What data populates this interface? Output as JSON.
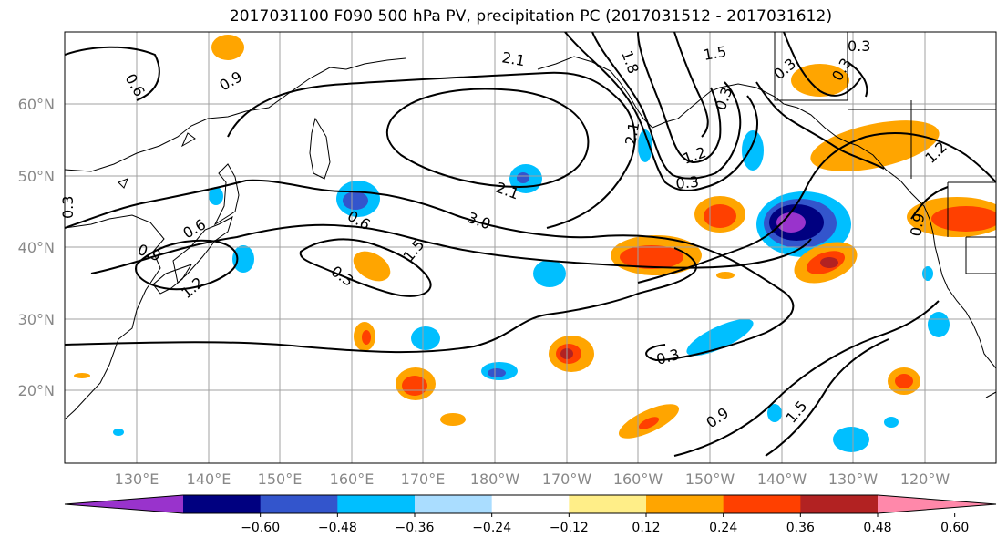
{
  "title": "2017031100 F090 500 hPa PV, precipitation PC (2017031512 - 2017031612)",
  "lat_labels": [
    "60°N",
    "50°N",
    "40°N",
    "30°N",
    "20°N"
  ],
  "lon_labels": [
    "130°E",
    "140°E",
    "150°E",
    "160°E",
    "170°E",
    "180°W",
    "170°W",
    "160°W",
    "150°W",
    "140°W",
    "130°W",
    "120°W"
  ],
  "contour_labels": [
    "0.6",
    "0.9",
    "0.3",
    "0.9",
    "1.2",
    "0.6",
    "0.3",
    "0.6",
    "1.5",
    "3.0",
    "2.1",
    "2.1",
    "1.8",
    "2.1",
    "1.5",
    "1.2",
    "0.3",
    "0.3",
    "0.3",
    "0.3",
    "0.3",
    "0.9",
    "1.5",
    "0.9",
    "1.2",
    "0.3"
  ],
  "colorbar": {
    "ticks": [
      "−0.60",
      "−0.48",
      "−0.36",
      "−0.24",
      "−0.12",
      "0.12",
      "0.24",
      "0.36",
      "0.48",
      "0.60"
    ],
    "colors": [
      "#9933cc",
      "#000080",
      "#3355cc",
      "#00bfff",
      "#aaddff",
      "#ffffff",
      "#ffee88",
      "#ffa500",
      "#ff4000",
      "#b22222",
      "#ff88aa"
    ]
  }
}
